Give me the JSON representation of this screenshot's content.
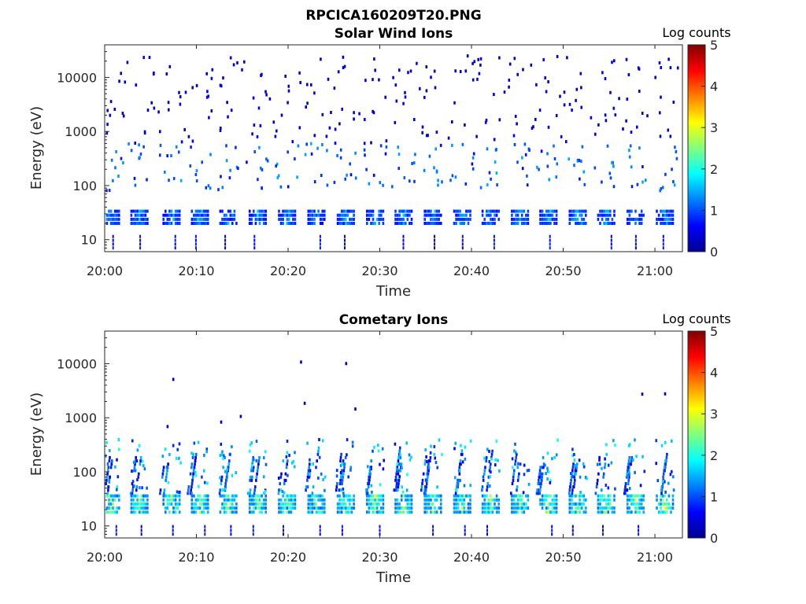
{
  "figure_title": "RPCICA160209T20.PNG",
  "chart_data": [
    {
      "type": "heatmap",
      "title": "Solar Wind Ions",
      "xlabel": "Time",
      "ylabel": "Energy (eV)",
      "x_ticks": [
        "20:00",
        "20:10",
        "20:20",
        "20:30",
        "20:40",
        "20:50",
        "21:00"
      ],
      "y_ticks": [
        "10",
        "100",
        "1000",
        "10000"
      ],
      "y_scale": "log",
      "ylim": [
        6,
        40000
      ],
      "xlim_minutes": [
        0,
        63
      ],
      "colorbar": {
        "label": "Log counts",
        "min": 0,
        "max": 5,
        "ticks": [
          "0",
          "1",
          "2",
          "3",
          "4",
          "5"
        ]
      },
      "scan_times_min": [
        0.6,
        3.7,
        7.2,
        10.3,
        13.4,
        16.6,
        19.8,
        23.0,
        26.2,
        29.4,
        32.5,
        35.7,
        38.9,
        42.0,
        45.2,
        48.3,
        51.5,
        54.6,
        57.8,
        61.0
      ],
      "bands": [
        {
          "e_min": 20,
          "e_max": 36,
          "level": 1.3,
          "note": "recurring core band"
        },
        {
          "e_min": 6,
          "e_max": 12,
          "level": 0.5,
          "note": "low-energy streaks"
        },
        {
          "e_min": 80,
          "e_max": 600,
          "level": 0.6,
          "note": "scattered"
        },
        {
          "e_min": 600,
          "e_max": 25000,
          "level": 0.3,
          "note": "sparse noise"
        }
      ]
    },
    {
      "type": "heatmap",
      "title": "Cometary Ions",
      "xlabel": "Time",
      "ylabel": "Energy (eV)",
      "x_ticks": [
        "20:00",
        "20:10",
        "20:20",
        "20:30",
        "20:40",
        "20:50",
        "21:00"
      ],
      "y_ticks": [
        "10",
        "100",
        "1000",
        "10000"
      ],
      "y_scale": "log",
      "ylim": [
        6,
        40000
      ],
      "xlim_minutes": [
        0,
        63
      ],
      "colorbar": {
        "label": "Log counts",
        "min": 0,
        "max": 5,
        "ticks": [
          "0",
          "1",
          "2",
          "3",
          "4",
          "5"
        ]
      },
      "scan_times_min": [
        0.6,
        3.7,
        7.2,
        10.3,
        13.4,
        16.6,
        19.8,
        23.0,
        26.2,
        29.4,
        32.5,
        35.7,
        38.9,
        42.0,
        45.2,
        48.3,
        51.5,
        54.6,
        57.8,
        61.0
      ],
      "bands": [
        {
          "e_min": 18,
          "e_max": 38,
          "level": 2.4,
          "note": "bright core band"
        },
        {
          "e_min": 40,
          "e_max": 500,
          "level": 1.0,
          "note": "rising streaks"
        },
        {
          "e_min": 6,
          "e_max": 10,
          "level": 0.5,
          "note": "low-energy streaks"
        }
      ]
    }
  ]
}
